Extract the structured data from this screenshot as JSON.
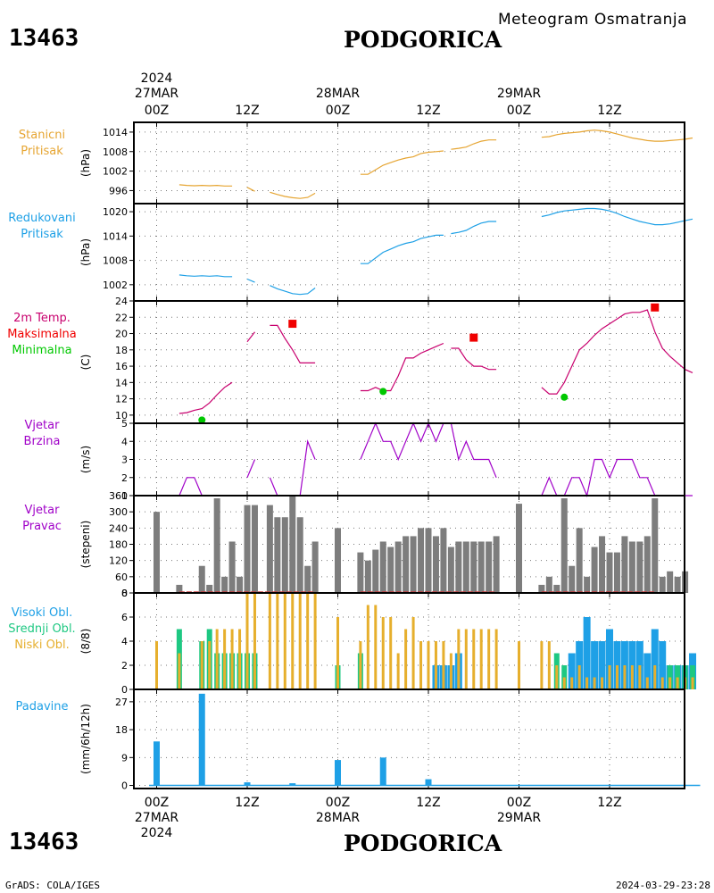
{
  "header": {
    "station_id": "13463",
    "station_name": "PODGORICA",
    "subtitle": "Meteogram Osmatranja",
    "year": "2024"
  },
  "footer": {
    "credit": "GrADS: COLA/IGES",
    "timestamp": "2024-03-29-23:28"
  },
  "time_axis": {
    "hours_total": 72,
    "ticks": [
      {
        "h": 0,
        "label": "00Z",
        "date": "27MAR"
      },
      {
        "h": 12,
        "label": "12Z",
        "date": ""
      },
      {
        "h": 24,
        "label": "00Z",
        "date": "28MAR"
      },
      {
        "h": 36,
        "label": "12Z",
        "date": ""
      },
      {
        "h": 48,
        "label": "00Z",
        "date": "29MAR"
      },
      {
        "h": 60,
        "label": "12Z",
        "date": ""
      }
    ]
  },
  "colors": {
    "pressure_station": "#e6a532",
    "pressure_reduced": "#1ea0e6",
    "temp_line": "#c8006e",
    "temp_max": "#f00000",
    "temp_min": "#00c800",
    "wind": "#a000c8",
    "direction_bar": "#7d7d7d",
    "direction_calm": "#c83c3c",
    "high_cloud": "#1ea0e6",
    "mid_cloud": "#1ec882",
    "low_cloud": "#e6af2d",
    "precip": "#1ea0e6"
  },
  "chart_data": [
    {
      "type": "line",
      "key": "station_pressure",
      "panel_label": [
        "Stanicni",
        "Pritisak"
      ],
      "ylabel": "(hPa)",
      "ylim": [
        992,
        1017
      ],
      "yticks": [
        996,
        1002,
        1008,
        1014
      ],
      "segments": [
        {
          "x": [
            3,
            4,
            5,
            6,
            7,
            8,
            9,
            10
          ],
          "y": [
            997.8,
            997.6,
            997.5,
            997.6,
            997.5,
            997.6,
            997.4,
            997.4
          ]
        },
        {
          "x": [
            12,
            13
          ],
          "y": [
            997.0,
            995.8
          ]
        },
        {
          "x": [
            15,
            16,
            17,
            18,
            19,
            20,
            21
          ],
          "y": [
            995.5,
            994.8,
            994.2,
            993.8,
            993.6,
            993.9,
            995.2
          ]
        },
        {
          "x": [
            27,
            28,
            29,
            30,
            31,
            32,
            33,
            34,
            35,
            36,
            37,
            38
          ],
          "y": [
            1001.0,
            1001.0,
            1002.4,
            1003.8,
            1004.6,
            1005.4,
            1006.0,
            1006.4,
            1007.4,
            1007.8,
            1008.0,
            1008.2
          ]
        },
        {
          "x": [
            39,
            40,
            41,
            42,
            43,
            44,
            45
          ],
          "y": [
            1008.7,
            1009.0,
            1009.4,
            1010.4,
            1011.2,
            1011.6,
            1011.6
          ]
        },
        {
          "x": [
            51,
            52,
            53,
            54,
            55,
            56,
            57,
            58,
            59,
            60,
            61,
            62,
            63,
            64,
            65,
            66,
            67,
            68,
            69,
            70,
            71
          ],
          "y": [
            1012.4,
            1012.6,
            1013.2,
            1013.6,
            1013.8,
            1014.0,
            1014.4,
            1014.6,
            1014.4,
            1014.0,
            1013.4,
            1012.8,
            1012.2,
            1011.8,
            1011.4,
            1011.2,
            1011.2,
            1011.4,
            1011.6,
            1011.8,
            1012.2
          ]
        }
      ]
    },
    {
      "type": "line",
      "key": "reduced_pressure",
      "panel_label": [
        "Redukovani",
        "Pritisak"
      ],
      "ylabel": "(hPa)",
      "ylim": [
        998,
        1022
      ],
      "yticks": [
        1002,
        1008,
        1014,
        1020
      ],
      "segments": [
        {
          "x": [
            3,
            4,
            5,
            6,
            7,
            8,
            9,
            10
          ],
          "y": [
            1004.4,
            1004.2,
            1004.1,
            1004.2,
            1004.1,
            1004.2,
            1004.0,
            1004.0
          ]
        },
        {
          "x": [
            12,
            13
          ],
          "y": [
            1003.4,
            1002.6
          ]
        },
        {
          "x": [
            15,
            16,
            17,
            18,
            19,
            20,
            21
          ],
          "y": [
            1001.8,
            1001.0,
            1000.4,
            999.8,
            999.6,
            999.8,
            1001.2
          ]
        },
        {
          "x": [
            27,
            28,
            29,
            30,
            31,
            32,
            33,
            34,
            35,
            36,
            37,
            38
          ],
          "y": [
            1007.2,
            1007.2,
            1008.6,
            1010.0,
            1010.8,
            1011.6,
            1012.2,
            1012.6,
            1013.4,
            1013.8,
            1014.2,
            1014.2
          ]
        },
        {
          "x": [
            39,
            40,
            41,
            42,
            43,
            44,
            45
          ],
          "y": [
            1014.6,
            1014.9,
            1015.4,
            1016.4,
            1017.2,
            1017.6,
            1017.6
          ]
        },
        {
          "x": [
            51,
            52,
            53,
            54,
            55,
            56,
            57,
            58,
            59,
            60,
            61,
            62,
            63,
            64,
            65,
            66,
            67,
            68,
            69,
            70,
            71
          ],
          "y": [
            1018.8,
            1019.2,
            1019.8,
            1020.2,
            1020.4,
            1020.6,
            1020.8,
            1020.8,
            1020.6,
            1020.2,
            1019.6,
            1018.8,
            1018.2,
            1017.6,
            1017.2,
            1016.8,
            1016.8,
            1017.0,
            1017.4,
            1017.8,
            1018.2
          ]
        }
      ]
    },
    {
      "type": "line",
      "key": "temperature",
      "panel_label": [
        "2m Temp.",
        "Maksimalna",
        "Minimalna"
      ],
      "ylabel": "(C)",
      "ylim": [
        9,
        24
      ],
      "yticks": [
        10,
        12,
        14,
        16,
        18,
        20,
        22,
        24
      ],
      "segments": [
        {
          "x": [
            3,
            4,
            5,
            6,
            7,
            8,
            9,
            10
          ],
          "y": [
            10.2,
            10.3,
            10.6,
            10.8,
            11.5,
            12.5,
            13.4,
            14.0
          ]
        },
        {
          "x": [
            12,
            13
          ],
          "y": [
            19.0,
            20.2
          ]
        },
        {
          "x": [
            15,
            16,
            17,
            18,
            19,
            20,
            21
          ],
          "y": [
            21.0,
            21.0,
            19.4,
            18.0,
            16.4,
            16.4,
            16.4
          ]
        },
        {
          "x": [
            27,
            28,
            29,
            30,
            31,
            32,
            33,
            34,
            35,
            36,
            37,
            38
          ],
          "y": [
            13.0,
            13.0,
            13.4,
            13.0,
            13.0,
            14.8,
            17.0,
            17.0,
            17.6,
            18.0,
            18.4,
            18.8
          ]
        },
        {
          "x": [
            39,
            40,
            41,
            42,
            43,
            44,
            45
          ],
          "y": [
            18.2,
            18.2,
            16.8,
            16.0,
            16.0,
            15.6,
            15.6
          ]
        },
        {
          "x": [
            51,
            52,
            53,
            54,
            55,
            56,
            57,
            58,
            59,
            60,
            61,
            62,
            63,
            64,
            65,
            66,
            67,
            68,
            69,
            70,
            71
          ],
          "y": [
            13.4,
            12.6,
            12.6,
            14.0,
            16.0,
            18.0,
            18.8,
            19.8,
            20.6,
            21.2,
            21.8,
            22.4,
            22.6,
            22.6,
            22.9,
            20.2,
            18.2,
            17.2,
            16.4,
            15.6,
            15.2
          ]
        }
      ],
      "max_points": {
        "x": [
          18,
          42,
          66
        ],
        "y": [
          21.2,
          19.5,
          23.2
        ]
      },
      "min_points": {
        "x": [
          6,
          30,
          54
        ],
        "y": [
          9.4,
          12.9,
          12.2
        ]
      }
    },
    {
      "type": "line",
      "key": "wind_speed",
      "panel_label": [
        "Vjetar",
        "Brzina"
      ],
      "ylabel": "(m/s)",
      "ylim": [
        1,
        5
      ],
      "yticks": [
        1,
        2,
        3,
        4,
        5
      ],
      "segments": [
        {
          "x": [
            3,
            4,
            5,
            6,
            7,
            8,
            9,
            10
          ],
          "y": [
            1,
            2,
            2,
            1,
            1,
            1,
            1,
            1
          ]
        },
        {
          "x": [
            12,
            13
          ],
          "y": [
            2,
            3
          ]
        },
        {
          "x": [
            15,
            16,
            17,
            18,
            19,
            20,
            21
          ],
          "y": [
            2,
            1,
            1,
            1,
            1,
            4,
            3
          ]
        },
        {
          "x": [
            27,
            28,
            29,
            30,
            31,
            32,
            33,
            34,
            35,
            36,
            37,
            38
          ],
          "y": [
            3,
            4,
            5,
            4,
            4,
            3,
            4,
            5,
            4,
            5,
            4,
            5
          ]
        },
        {
          "x": [
            39,
            40,
            41,
            42,
            43,
            44,
            45
          ],
          "y": [
            5,
            3,
            4,
            3,
            3,
            3,
            2
          ]
        },
        {
          "x": [
            51,
            52,
            53,
            54,
            55,
            56,
            57,
            58,
            59,
            60,
            61,
            62,
            63,
            64,
            65,
            66,
            67,
            68,
            69,
            70,
            71
          ],
          "y": [
            1,
            2,
            1,
            1,
            2,
            2,
            1,
            3,
            3,
            2,
            3,
            3,
            3,
            2,
            2,
            1,
            1,
            1,
            1,
            1,
            1
          ]
        }
      ]
    },
    {
      "type": "bar",
      "key": "wind_direction",
      "panel_label": [
        "Vjetar",
        "Pravac"
      ],
      "ylabel": "(stepeni)",
      "ylim": [
        0,
        360
      ],
      "yticks": [
        0,
        60,
        120,
        180,
        240,
        300,
        360
      ],
      "x": [
        0,
        3,
        6,
        7,
        8,
        9,
        10,
        11,
        12,
        13,
        15,
        16,
        17,
        18,
        19,
        20,
        21,
        24,
        27,
        28,
        29,
        30,
        31,
        32,
        33,
        34,
        35,
        36,
        37,
        38,
        39,
        40,
        41,
        42,
        43,
        44,
        45,
        48,
        51,
        52,
        53,
        54,
        55,
        56,
        57,
        58,
        59,
        60,
        61,
        62,
        63,
        64,
        65,
        66,
        67,
        68,
        69,
        70,
        71
      ],
      "values": [
        300,
        30,
        100,
        30,
        350,
        60,
        190,
        60,
        325,
        325,
        325,
        280,
        280,
        360,
        280,
        100,
        190,
        240,
        150,
        120,
        160,
        190,
        170,
        190,
        210,
        210,
        240,
        240,
        210,
        240,
        170,
        190,
        190,
        190,
        190,
        190,
        210,
        330,
        30,
        60,
        30,
        350,
        100,
        240,
        60,
        170,
        210,
        150,
        150,
        210,
        190,
        190,
        210,
        350,
        60,
        80,
        60,
        80,
        0
      ]
    },
    {
      "type": "bar",
      "key": "clouds",
      "panel_label": [
        "Visoki Obl.",
        "Srednji Obl.",
        "Niski Obl."
      ],
      "ylabel": "(8/8)",
      "ylim": [
        0,
        8
      ],
      "yticks": [
        0,
        2,
        4,
        6,
        8
      ],
      "x": [
        0,
        3,
        6,
        7,
        8,
        9,
        10,
        11,
        12,
        13,
        15,
        16,
        17,
        18,
        19,
        20,
        21,
        24,
        27,
        28,
        29,
        30,
        31,
        32,
        33,
        34,
        35,
        36,
        37,
        38,
        39,
        40,
        41,
        42,
        43,
        44,
        45,
        48,
        51,
        52,
        53,
        54,
        55,
        56,
        57,
        58,
        59,
        60,
        61,
        62,
        63,
        64,
        65,
        66,
        67,
        68,
        69,
        70,
        71
      ],
      "series": [
        {
          "name": "Visoki Obl.",
          "values": [
            0,
            0,
            0,
            0,
            0,
            0,
            0,
            0,
            0,
            0,
            0,
            0,
            0,
            0,
            0,
            0,
            0,
            0,
            0,
            0,
            0,
            0,
            0,
            0,
            0,
            0,
            0,
            0,
            0,
            0,
            0,
            0,
            0,
            0,
            0,
            0,
            0,
            0,
            0,
            0,
            0,
            0,
            0,
            0,
            0,
            0,
            0,
            0,
            0,
            0,
            0,
            0,
            0,
            0,
            0,
            0,
            0,
            0,
            0
          ]
        },
        {
          "name": "Srednji Obl.",
          "values": [
            0,
            5,
            4,
            5,
            3,
            3,
            3,
            3,
            3,
            3,
            0,
            0,
            0,
            0,
            0,
            0,
            0,
            2,
            3,
            0,
            0,
            0,
            0,
            0,
            0,
            0,
            0,
            0,
            0,
            0,
            0,
            0,
            0,
            0,
            0,
            0,
            0,
            0,
            0,
            0,
            3,
            2,
            0,
            0,
            0,
            0,
            0,
            0,
            0,
            0,
            0,
            0,
            0,
            0,
            0,
            2,
            2,
            2,
            2
          ]
        },
        {
          "name": "Niski Obl.",
          "values": [
            4,
            3,
            4,
            4,
            5,
            5,
            5,
            5,
            8,
            8,
            8,
            8,
            8,
            8,
            8,
            8,
            8,
            6,
            4,
            7,
            7,
            6,
            6,
            3,
            5,
            6,
            4,
            4,
            4,
            4,
            3,
            5,
            5,
            5,
            5,
            5,
            5,
            4,
            4,
            4,
            2,
            1,
            1,
            2,
            1,
            1,
            1,
            2,
            2,
            2,
            2,
            2,
            1,
            2,
            1,
            1,
            1,
            1,
            1
          ]
        },
        {
          "name": "high_override",
          "values": [
            0,
            0,
            0,
            0,
            0,
            0,
            0,
            0,
            0,
            0,
            0,
            0,
            0,
            0,
            0,
            0,
            0,
            0,
            0,
            0,
            0,
            0,
            0,
            0,
            0,
            0,
            0,
            0,
            2,
            2,
            2,
            3,
            0,
            0,
            0,
            0,
            0,
            0,
            0,
            0,
            0,
            0,
            3,
            4,
            6,
            4,
            4,
            5,
            4,
            4,
            4,
            4,
            3,
            5,
            4,
            2,
            2,
            2,
            3
          ]
        }
      ]
    },
    {
      "type": "bar",
      "key": "precipitation",
      "panel_label": [
        "Padavine"
      ],
      "ylabel": "(mm/6h/12h)",
      "ylim": [
        -1,
        31
      ],
      "yticks": [
        0,
        9,
        18,
        27
      ],
      "x": [
        0,
        6,
        12,
        18,
        24,
        30,
        36
      ],
      "values": [
        14.2,
        29.6,
        1.0,
        0.7,
        8.2,
        9.0,
        2.0
      ]
    }
  ]
}
